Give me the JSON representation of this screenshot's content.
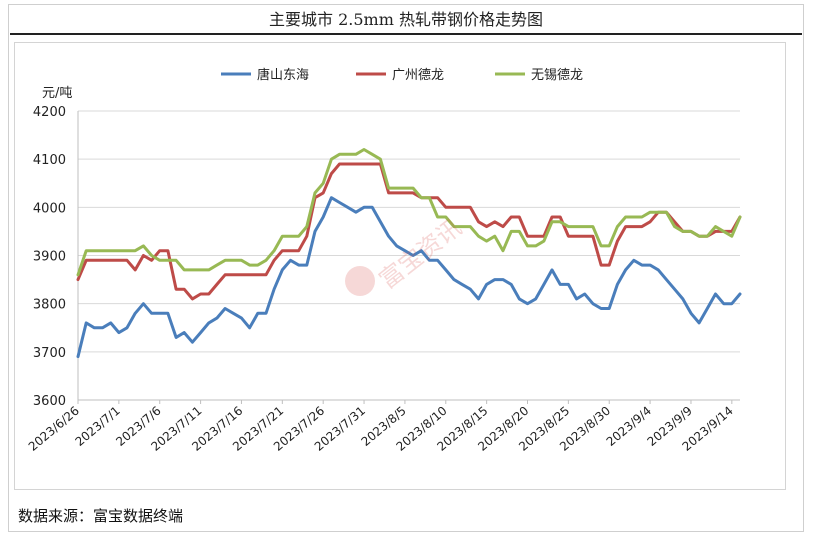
{
  "title": "主要城市 2.5mm 热轧带钢价格走势图",
  "source": "数据来源：富宝数据终端",
  "watermark": "富宝资讯",
  "chart_data": {
    "type": "line",
    "title": "主要城市 2.5mm 热轧带钢价格走势图",
    "ylabel": "元/吨",
    "xlabel": "",
    "ylim": [
      3600,
      4200
    ],
    "yticks": [
      3600,
      3700,
      3800,
      3900,
      4000,
      4100,
      4200
    ],
    "grid": "horizontal",
    "legend_position": "top",
    "x": [
      "2023/6/26",
      "2023/6/27",
      "2023/6/28",
      "2023/6/29",
      "2023/6/30",
      "2023/7/1",
      "2023/7/2",
      "2023/7/3",
      "2023/7/4",
      "2023/7/5",
      "2023/7/6",
      "2023/7/7",
      "2023/7/8",
      "2023/7/9",
      "2023/7/10",
      "2023/7/11",
      "2023/7/12",
      "2023/7/13",
      "2023/7/14",
      "2023/7/15",
      "2023/7/16",
      "2023/7/17",
      "2023/7/18",
      "2023/7/19",
      "2023/7/20",
      "2023/7/21",
      "2023/7/22",
      "2023/7/23",
      "2023/7/24",
      "2023/7/25",
      "2023/7/26",
      "2023/7/27",
      "2023/7/28",
      "2023/7/29",
      "2023/7/30",
      "2023/7/31",
      "2023/8/1",
      "2023/8/2",
      "2023/8/3",
      "2023/8/4",
      "2023/8/5",
      "2023/8/6",
      "2023/8/7",
      "2023/8/8",
      "2023/8/9",
      "2023/8/10",
      "2023/8/11",
      "2023/8/12",
      "2023/8/13",
      "2023/8/14",
      "2023/8/15",
      "2023/8/16",
      "2023/8/17",
      "2023/8/18",
      "2023/8/19",
      "2023/8/20",
      "2023/8/21",
      "2023/8/22",
      "2023/8/23",
      "2023/8/24",
      "2023/8/25",
      "2023/8/26",
      "2023/8/27",
      "2023/8/28",
      "2023/8/29",
      "2023/8/30",
      "2023/8/31",
      "2023/9/1",
      "2023/9/2",
      "2023/9/3",
      "2023/9/4",
      "2023/9/5",
      "2023/9/6",
      "2023/9/7",
      "2023/9/8",
      "2023/9/9",
      "2023/9/10",
      "2023/9/11",
      "2023/9/12",
      "2023/9/13",
      "2023/9/14",
      "2023/9/15"
    ],
    "tick_labels": [
      "2023/6/26",
      "2023/7/1",
      "2023/7/6",
      "2023/7/11",
      "2023/7/16",
      "2023/7/21",
      "2023/7/26",
      "2023/7/31",
      "2023/8/5",
      "2023/8/10",
      "2023/8/15",
      "2023/8/20",
      "2023/8/25",
      "2023/8/30",
      "2023/9/4",
      "2023/9/9",
      "2023/9/14"
    ],
    "series": [
      {
        "name": "唐山东海",
        "color": "#4a7ebb",
        "values": [
          3690,
          3760,
          3750,
          3750,
          3760,
          3740,
          3750,
          3780,
          3800,
          3780,
          3780,
          3780,
          3730,
          3740,
          3720,
          3740,
          3760,
          3770,
          3790,
          3780,
          3770,
          3750,
          3780,
          3780,
          3830,
          3870,
          3890,
          3880,
          3880,
          3950,
          3980,
          4020,
          4010,
          4000,
          3990,
          4000,
          4000,
          3970,
          3940,
          3920,
          3910,
          3900,
          3910,
          3890,
          3890,
          3870,
          3850,
          3840,
          3830,
          3810,
          3840,
          3850,
          3850,
          3840,
          3810,
          3800,
          3810,
          3840,
          3870,
          3840,
          3840,
          3810,
          3820,
          3800,
          3790,
          3790,
          3840,
          3870,
          3890,
          3880,
          3880,
          3870,
          3850,
          3830,
          3810,
          3780,
          3760,
          3790,
          3820,
          3800,
          3800,
          3820
        ]
      },
      {
        "name": "广州德龙",
        "color": "#be4b48",
        "values": [
          3850,
          3890,
          3890,
          3890,
          3890,
          3890,
          3890,
          3870,
          3900,
          3890,
          3910,
          3910,
          3830,
          3830,
          3810,
          3820,
          3820,
          3840,
          3860,
          3860,
          3860,
          3860,
          3860,
          3860,
          3890,
          3910,
          3910,
          3910,
          3940,
          4020,
          4030,
          4070,
          4090,
          4090,
          4090,
          4090,
          4090,
          4090,
          4030,
          4030,
          4030,
          4030,
          4020,
          4020,
          4020,
          4000,
          4000,
          4000,
          4000,
          3970,
          3960,
          3970,
          3960,
          3980,
          3980,
          3940,
          3940,
          3940,
          3980,
          3980,
          3940,
          3940,
          3940,
          3940,
          3880,
          3880,
          3930,
          3960,
          3960,
          3960,
          3970,
          3990,
          3990,
          3970,
          3950,
          3950,
          3940,
          3940,
          3950,
          3950,
          3950,
          3980
        ]
      },
      {
        "name": "无锡德龙",
        "color": "#98b954",
        "values": [
          3860,
          3910,
          3910,
          3910,
          3910,
          3910,
          3910,
          3910,
          3920,
          3900,
          3890,
          3890,
          3890,
          3870,
          3870,
          3870,
          3870,
          3880,
          3890,
          3890,
          3890,
          3880,
          3880,
          3890,
          3910,
          3940,
          3940,
          3940,
          3960,
          4030,
          4050,
          4100,
          4110,
          4110,
          4110,
          4120,
          4110,
          4100,
          4040,
          4040,
          4040,
          4040,
          4020,
          4020,
          3980,
          3980,
          3960,
          3960,
          3960,
          3940,
          3930,
          3940,
          3910,
          3950,
          3950,
          3920,
          3920,
          3930,
          3970,
          3970,
          3960,
          3960,
          3960,
          3960,
          3920,
          3920,
          3960,
          3980,
          3980,
          3980,
          3990,
          3990,
          3990,
          3960,
          3950,
          3950,
          3940,
          3940,
          3960,
          3950,
          3940,
          3980
        ]
      }
    ]
  }
}
